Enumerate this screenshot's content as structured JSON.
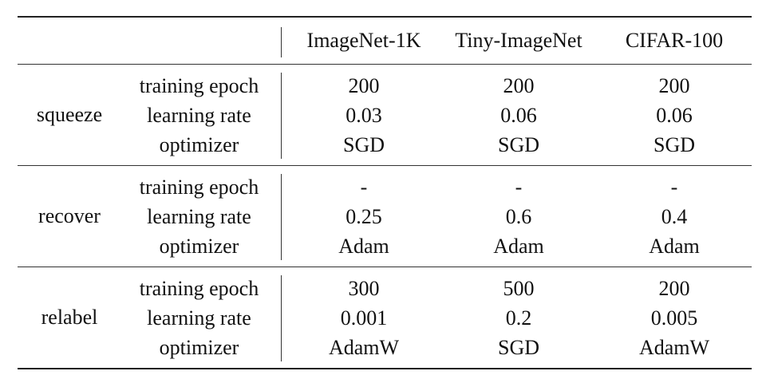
{
  "columns": [
    "ImageNet-1K",
    "Tiny-ImageNet",
    "CIFAR-100"
  ],
  "params": [
    "training epoch",
    "learning rate",
    "optimizer"
  ],
  "groups": [
    {
      "label": "squeeze",
      "values": [
        [
          "200",
          "200",
          "200"
        ],
        [
          "0.03",
          "0.06",
          "0.06"
        ],
        [
          "SGD",
          "SGD",
          "SGD"
        ]
      ]
    },
    {
      "label": "recover",
      "values": [
        [
          "-",
          "-",
          "-"
        ],
        [
          "0.25",
          "0.6",
          "0.4"
        ],
        [
          "Adam",
          "Adam",
          "Adam"
        ]
      ]
    },
    {
      "label": "relabel",
      "values": [
        [
          "300",
          "500",
          "200"
        ],
        [
          "0.001",
          "0.2",
          "0.005"
        ],
        [
          "AdamW",
          "SGD",
          "AdamW"
        ]
      ]
    }
  ]
}
